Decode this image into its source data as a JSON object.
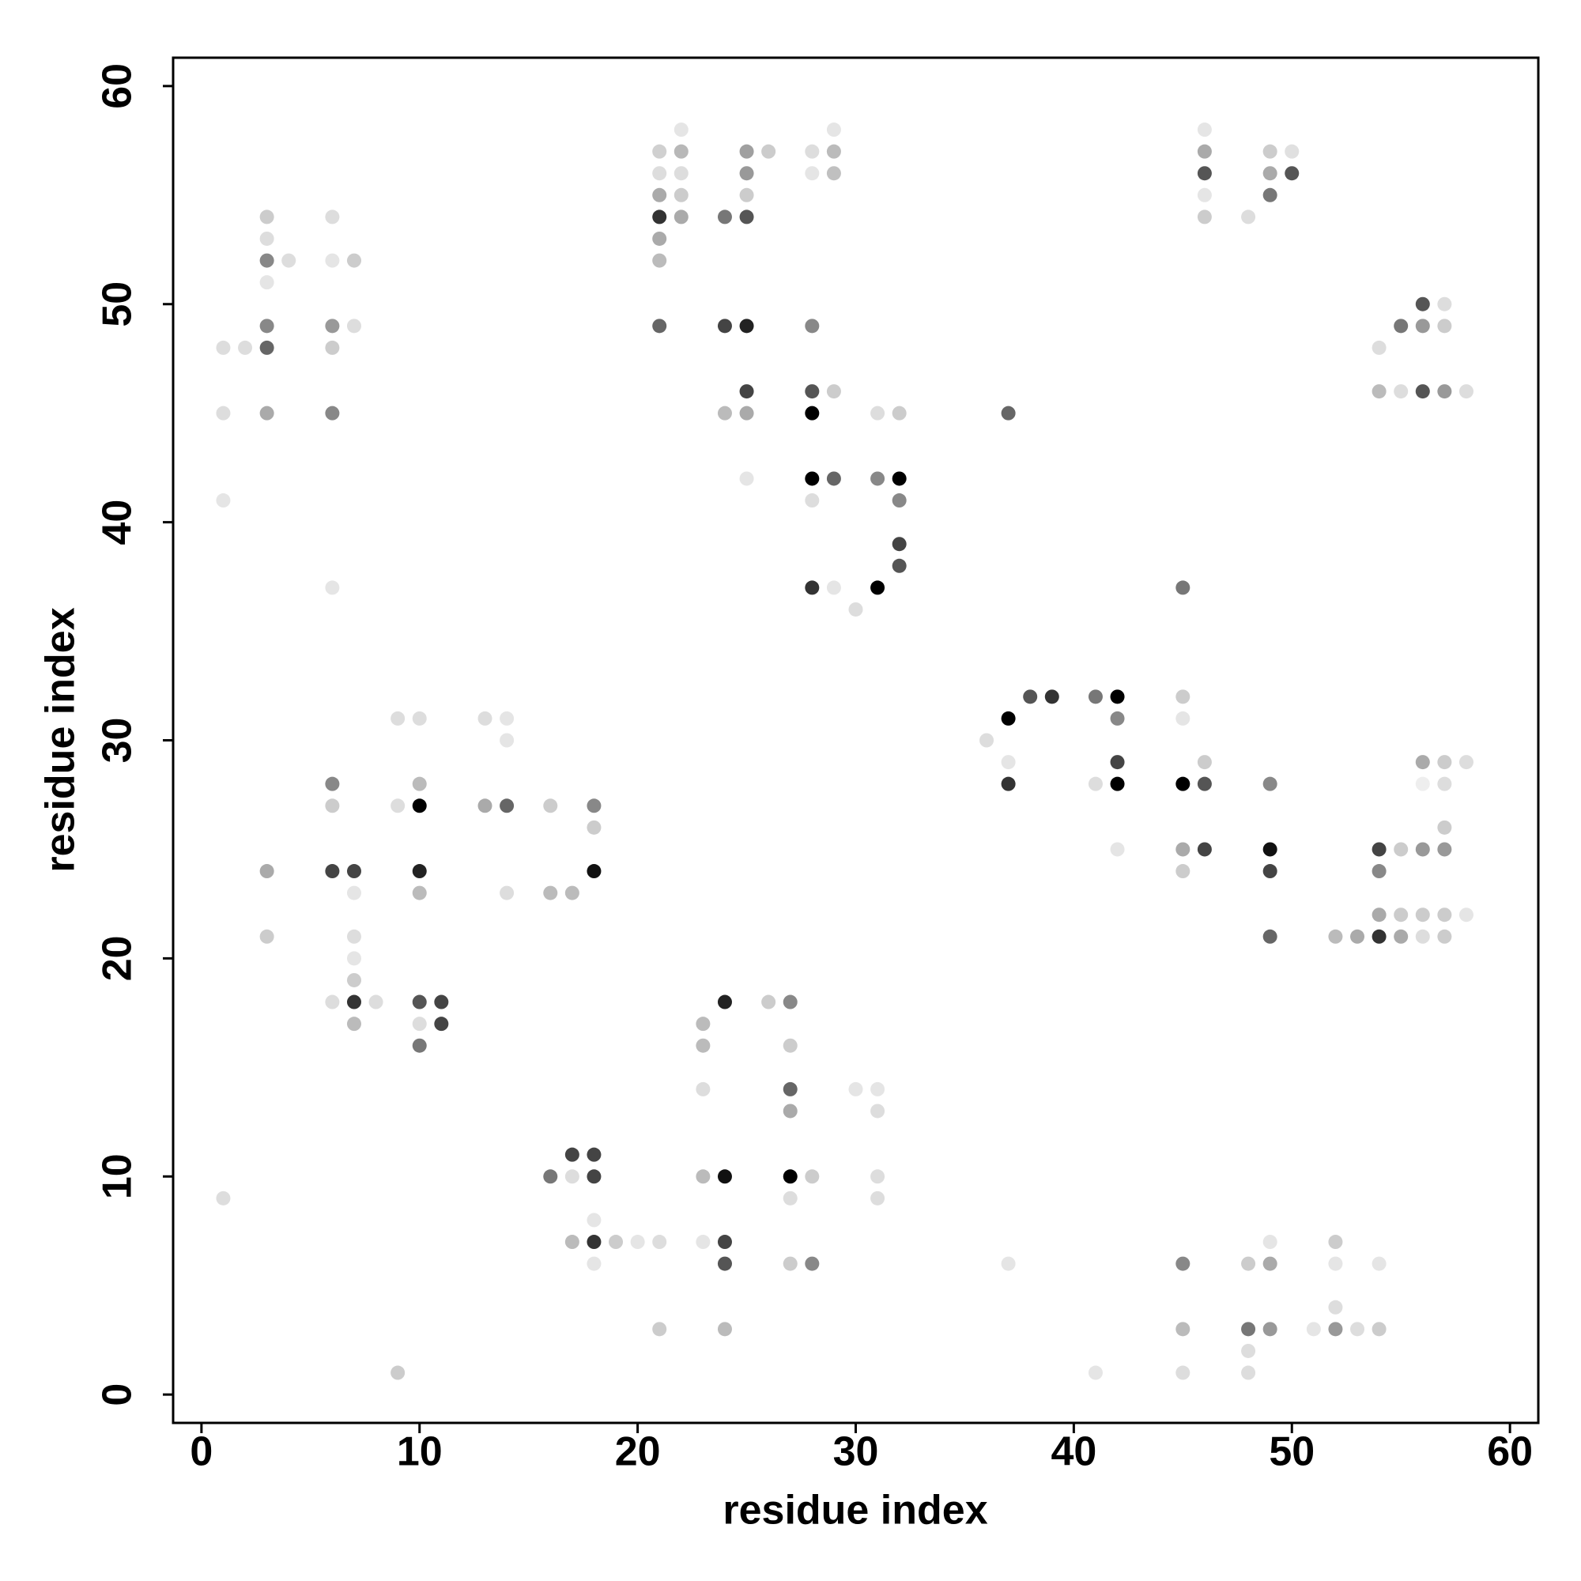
{
  "chart_data": {
    "type": "scatter",
    "xlabel": "residue index",
    "ylabel": "residue index",
    "xlim": [
      -1.3,
      61.3
    ],
    "ylim": [
      -1.3,
      61.3
    ],
    "xticks": [
      0,
      10,
      20,
      30,
      40,
      50,
      60
    ],
    "yticks": [
      0,
      10,
      20,
      30,
      40,
      50,
      60
    ],
    "series": [
      {
        "x": [
          22,
          29,
          46,
          21,
          22,
          25,
          26,
          28,
          29,
          46,
          49,
          50,
          21,
          22,
          25,
          28,
          29,
          46,
          49,
          50,
          21,
          22,
          25,
          46,
          49,
          3,
          6,
          21,
          22,
          24,
          25,
          46,
          48,
          3,
          21,
          3,
          4,
          6,
          7,
          21,
          3,
          56,
          57,
          3,
          6,
          7,
          21,
          24,
          25,
          28,
          55,
          56,
          57,
          1,
          2,
          3,
          6,
          54,
          25,
          28,
          29,
          54,
          55,
          56,
          57,
          58,
          1,
          3,
          6,
          24,
          25,
          28,
          31,
          32,
          37,
          25,
          28,
          29,
          31,
          32,
          1,
          28,
          32,
          32,
          32,
          6,
          28,
          29,
          31,
          45,
          30,
          38,
          39,
          41,
          42,
          45,
          9,
          10,
          13,
          14,
          37,
          42,
          45,
          14,
          36,
          37,
          42,
          46,
          56,
          57,
          58,
          6,
          10,
          37,
          41,
          42,
          45,
          46,
          49,
          56,
          57,
          6,
          9,
          10,
          13,
          14,
          16,
          18,
          18,
          57,
          42,
          45,
          46,
          49,
          54,
          55,
          56,
          57,
          3,
          6,
          7,
          10,
          18,
          45,
          49,
          54,
          7,
          10,
          14,
          16,
          17,
          54,
          55,
          56,
          57,
          58,
          3,
          7,
          49,
          52,
          53,
          54,
          55,
          56,
          57,
          7,
          7,
          6,
          7,
          8,
          10,
          11,
          24,
          26,
          27,
          7,
          10,
          11,
          23,
          10,
          23,
          27,
          23,
          27,
          30,
          31,
          27,
          31,
          17,
          18,
          16,
          17,
          18,
          23,
          24,
          27,
          28,
          31,
          1,
          27,
          31,
          18,
          17,
          18,
          19,
          20,
          21,
          23,
          24,
          49,
          52,
          18,
          24,
          27,
          28,
          37,
          45,
          48,
          49,
          52,
          54,
          52,
          21,
          24,
          45,
          48,
          49,
          51,
          52,
          53,
          54,
          48,
          9,
          41,
          45,
          48
        ],
        "values": [
          58,
          58,
          58,
          57,
          57,
          57,
          57,
          57,
          57,
          57,
          57,
          57,
          56,
          56,
          56,
          56,
          56,
          56,
          56,
          56,
          55,
          55,
          55,
          55,
          55,
          54,
          54,
          54,
          54,
          54,
          54,
          54,
          54,
          53,
          53,
          52,
          52,
          52,
          52,
          52,
          51,
          50,
          50,
          49,
          49,
          49,
          49,
          49,
          49,
          49,
          49,
          49,
          49,
          48,
          48,
          48,
          48,
          48,
          46,
          46,
          46,
          46,
          46,
          46,
          46,
          46,
          45,
          45,
          45,
          45,
          45,
          45,
          45,
          45,
          45,
          42,
          42,
          42,
          42,
          42,
          41,
          41,
          41,
          39,
          38,
          37,
          37,
          37,
          37,
          37,
          36,
          32,
          32,
          32,
          32,
          32,
          31,
          31,
          31,
          31,
          31,
          31,
          31,
          30,
          30,
          29,
          29,
          29,
          29,
          29,
          29,
          28,
          28,
          28,
          28,
          28,
          28,
          28,
          28,
          28,
          28,
          27,
          27,
          27,
          27,
          27,
          27,
          27,
          26,
          26,
          25,
          25,
          25,
          25,
          25,
          25,
          25,
          25,
          24,
          24,
          24,
          24,
          24,
          24,
          24,
          24,
          23,
          23,
          23,
          23,
          23,
          22,
          22,
          22,
          22,
          22,
          21,
          21,
          21,
          21,
          21,
          21,
          21,
          21,
          21,
          20,
          19,
          18,
          18,
          18,
          18,
          18,
          18,
          18,
          18,
          17,
          17,
          17,
          17,
          16,
          16,
          16,
          14,
          14,
          14,
          14,
          13,
          13,
          11,
          11,
          10,
          10,
          10,
          10,
          10,
          10,
          10,
          10,
          9,
          9,
          9,
          8,
          7,
          7,
          7,
          7,
          7,
          7,
          7,
          7,
          7,
          6,
          6,
          6,
          6,
          6,
          6,
          6,
          6,
          6,
          6,
          4,
          3,
          3,
          3,
          3,
          3,
          3,
          3,
          3,
          3,
          2,
          1,
          1,
          1,
          1
        ],
        "colors": [
          "#e5e5e5",
          "#e5e5e5",
          "#e5e5e5",
          "#d0d0d0",
          "#b8b8b8",
          "#a0a0a0",
          "#cccccc",
          "#dddddd",
          "#bbbbbb",
          "#aaaaaa",
          "#cccccc",
          "#e0e0e0",
          "#dddddd",
          "#dddddd",
          "#999999",
          "#e5e5e5",
          "#c0c0c0",
          "#555555",
          "#aaaaaa",
          "#555555",
          "#aaaaaa",
          "#cccccc",
          "#cccccc",
          "#e5e5e5",
          "#777777",
          "#cccccc",
          "#dddddd",
          "#333333",
          "#aaaaaa",
          "#777777",
          "#555555",
          "#cccccc",
          "#dddddd",
          "#dddddd",
          "#aaaaaa",
          "#888888",
          "#dddddd",
          "#e5e5e5",
          "#cccccc",
          "#bbbbbb",
          "#e5e5e5",
          "#555555",
          "#dddddd",
          "#888888",
          "#999999",
          "#dddddd",
          "#666666",
          "#444444",
          "#222222",
          "#888888",
          "#777777",
          "#999999",
          "#cccccc",
          "#dddddd",
          "#dddddd",
          "#666666",
          "#cccccc",
          "#dddddd",
          "#444444",
          "#555555",
          "#cccccc",
          "#bbbbbb",
          "#dddddd",
          "#555555",
          "#999999",
          "#dddddd",
          "#dddddd",
          "#aaaaaa",
          "#888888",
          "#bbbbbb",
          "#aaaaaa",
          "#000000",
          "#dddddd",
          "#cccccc",
          "#666666",
          "#e5e5e5",
          "#000000",
          "#666666",
          "#888888",
          "#000000",
          "#e5e5e5",
          "#dddddd",
          "#888888",
          "#444444",
          "#555555",
          "#e5e5e5",
          "#333333",
          "#e5e5e5",
          "#000000",
          "#777777",
          "#dddddd",
          "#555555",
          "#333333",
          "#777777",
          "#000000",
          "#cccccc",
          "#dddddd",
          "#dddddd",
          "#dddddd",
          "#e5e5e5",
          "#000000",
          "#888888",
          "#e5e5e5",
          "#e5e5e5",
          "#dddddd",
          "#e5e5e5",
          "#444444",
          "#cccccc",
          "#aaaaaa",
          "#cccccc",
          "#dddddd",
          "#888888",
          "#bbbbbb",
          "#333333",
          "#dddddd",
          "#000000",
          "#000000",
          "#555555",
          "#888888",
          "#eeeeee",
          "#dddddd",
          "#cccccc",
          "#dddddd",
          "#000000",
          "#aaaaaa",
          "#666666",
          "#cccccc",
          "#888888",
          "#cccccc",
          "#cccccc",
          "#e5e5e5",
          "#aaaaaa",
          "#444444",
          "#111111",
          "#444444",
          "#cccccc",
          "#999999",
          "#999999",
          "#aaaaaa",
          "#444444",
          "#444444",
          "#222222",
          "#111111",
          "#cccccc",
          "#444444",
          "#888888",
          "#e5e5e5",
          "#bbbbbb",
          "#dddddd",
          "#bbbbbb",
          "#bbbbbb",
          "#aaaaaa",
          "#cccccc",
          "#cccccc",
          "#cccccc",
          "#e5e5e5",
          "#cccccc",
          "#dddddd",
          "#666666",
          "#bbbbbb",
          "#aaaaaa",
          "#333333",
          "#aaaaaa",
          "#dddddd",
          "#cccccc",
          "#e5e5e5",
          "#cccccc",
          "#dddddd",
          "#333333",
          "#dddddd",
          "#555555",
          "#444444",
          "#222222",
          "#cccccc",
          "#888888",
          "#bbbbbb",
          "#dddddd",
          "#444444",
          "#bbbbbb",
          "#777777",
          "#bbbbbb",
          "#cccccc",
          "#dddddd",
          "#666666",
          "#e5e5e5",
          "#e5e5e5",
          "#aaaaaa",
          "#dddddd",
          "#444444",
          "#444444",
          "#777777",
          "#dddddd",
          "#444444",
          "#bbbbbb",
          "#111111",
          "#000000",
          "#cccccc",
          "#dddddd",
          "#dddddd",
          "#dddddd",
          "#dddddd",
          "#e5e5e5",
          "#bbbbbb",
          "#333333",
          "#cccccc",
          "#e5e5e5",
          "#dddddd",
          "#e5e5e5",
          "#444444",
          "#e5e5e5",
          "#cccccc",
          "#e5e5e5",
          "#555555",
          "#cccccc",
          "#888888",
          "#e5e5e5",
          "#888888",
          "#cccccc",
          "#aaaaaa",
          "#e5e5e5",
          "#e5e5e5",
          "#dddddd",
          "#cccccc",
          "#bbbbbb",
          "#bbbbbb",
          "#777777",
          "#999999",
          "#e5e5e5",
          "#999999",
          "#dddddd",
          "#cccccc",
          "#dddddd",
          "#cccccc",
          "#e5e5e5",
          "#dddddd",
          "#dddddd"
        ]
      }
    ]
  }
}
